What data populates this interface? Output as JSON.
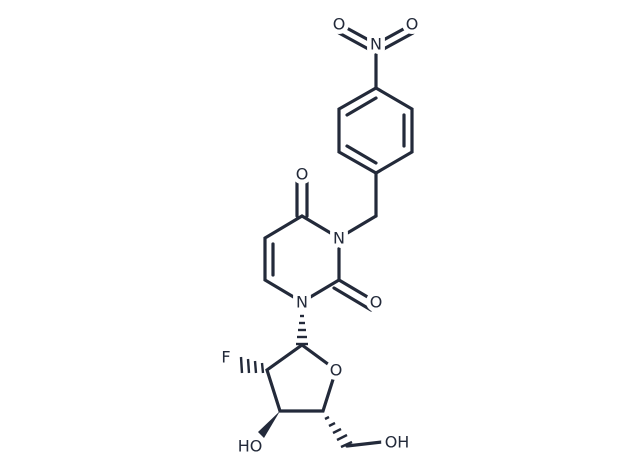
{
  "atoms": [
    "O",
    "N",
    "O",
    "O",
    "N",
    "N",
    "O",
    "F",
    "O",
    "HO",
    "OH"
  ]
}
